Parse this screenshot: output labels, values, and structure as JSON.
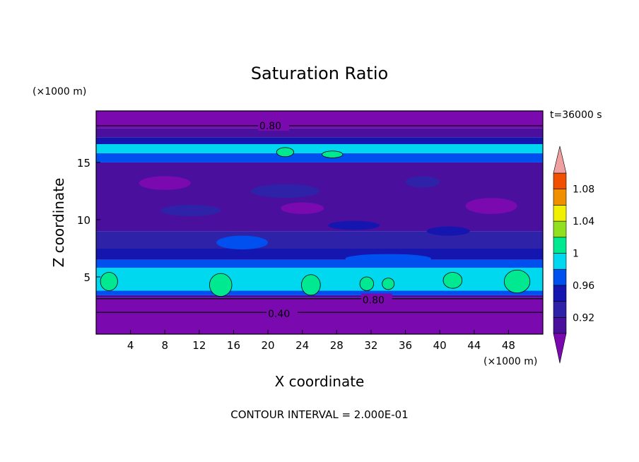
{
  "chart_data": {
    "type": "heatmap",
    "title": "Saturation Ratio",
    "xlabel": "X coordinate",
    "ylabel": "Z coordinate",
    "x_unit": "(×1000 m)",
    "y_unit": "(×1000 m)",
    "time_label": "t=36000 s",
    "footer": "CONTOUR INTERVAL = 2.000E-01",
    "xlim": [
      0,
      52
    ],
    "ylim": [
      0,
      19.5
    ],
    "x_ticks": [
      4,
      8,
      12,
      16,
      20,
      24,
      28,
      32,
      36,
      40,
      44,
      48
    ],
    "y_ticks": [
      5,
      10,
      15
    ],
    "colorbar": {
      "labels": [
        "0.92",
        "0.96",
        "1",
        "1.04",
        "1.08"
      ],
      "levels": [
        0.9,
        0.92,
        0.94,
        0.96,
        0.98,
        1.0,
        1.02,
        1.04,
        1.06,
        1.08,
        1.1
      ],
      "colors": [
        "#4b0f9e",
        "#2d22a8",
        "#1515b0",
        "#0050f0",
        "#00d8f0",
        "#00e890",
        "#90e020",
        "#f0f000",
        "#f09000",
        "#f05000",
        "#f01010",
        "#f0a0a0"
      ],
      "under_color": "#7a0ab0",
      "over_color": "#f0a0a0"
    },
    "contour_labels": [
      {
        "text": "0.80",
        "x": 19,
        "z": 18.2
      },
      {
        "text": "0.80",
        "x": 31,
        "z": 3.0
      },
      {
        "text": "0.40",
        "x": 20,
        "z": 1.8
      }
    ],
    "bands": [
      {
        "z0": 0.0,
        "z1": 3.2,
        "value": 0.5
      },
      {
        "z0": 3.2,
        "z1": 3.4,
        "value": 0.91
      },
      {
        "z0": 3.4,
        "z1": 3.8,
        "value": 0.97
      },
      {
        "z0": 3.8,
        "z1": 5.8,
        "value": 0.99
      },
      {
        "z0": 5.8,
        "z1": 6.5,
        "value": 0.97
      },
      {
        "z0": 6.5,
        "z1": 7.5,
        "value": 0.95
      },
      {
        "z0": 7.5,
        "z1": 9.0,
        "value": 0.93
      },
      {
        "z0": 9.0,
        "z1": 15.0,
        "value": 0.9
      },
      {
        "z0": 15.0,
        "z1": 15.8,
        "value": 0.97
      },
      {
        "z0": 15.8,
        "z1": 16.6,
        "value": 0.99
      },
      {
        "z0": 16.6,
        "z1": 17.2,
        "value": 0.95
      },
      {
        "z0": 17.2,
        "z1": 18.0,
        "value": 0.91
      },
      {
        "z0": 18.0,
        "z1": 19.5,
        "value": 0.8
      }
    ],
    "patches": [
      {
        "x": 1.5,
        "z": 4.6,
        "w": 2.0,
        "h": 1.6,
        "value": 1.01
      },
      {
        "x": 14.5,
        "z": 4.3,
        "w": 2.6,
        "h": 2.0,
        "value": 1.01
      },
      {
        "x": 25.0,
        "z": 4.3,
        "w": 2.2,
        "h": 1.8,
        "value": 1.01
      },
      {
        "x": 31.5,
        "z": 4.4,
        "w": 1.6,
        "h": 1.2,
        "value": 1.01
      },
      {
        "x": 34.0,
        "z": 4.4,
        "w": 1.4,
        "h": 1.0,
        "value": 1.01
      },
      {
        "x": 41.5,
        "z": 4.7,
        "w": 2.2,
        "h": 1.4,
        "value": 1.01
      },
      {
        "x": 49.0,
        "z": 4.6,
        "w": 3.0,
        "h": 2.0,
        "value": 1.01
      },
      {
        "x": 22.0,
        "z": 15.9,
        "w": 2.0,
        "h": 0.8,
        "value": 1.01
      },
      {
        "x": 27.5,
        "z": 15.7,
        "w": 2.4,
        "h": 0.6,
        "value": 1.01
      },
      {
        "x": 11.0,
        "z": 10.8,
        "w": 7.0,
        "h": 1.0,
        "value": 0.93
      },
      {
        "x": 22.0,
        "z": 12.5,
        "w": 8.0,
        "h": 1.2,
        "value": 0.93
      },
      {
        "x": 30.0,
        "z": 9.5,
        "w": 6.0,
        "h": 0.8,
        "value": 0.95
      },
      {
        "x": 41.0,
        "z": 9.0,
        "w": 5.0,
        "h": 0.8,
        "value": 0.95
      },
      {
        "x": 17.0,
        "z": 8.0,
        "w": 6.0,
        "h": 1.2,
        "value": 0.97
      },
      {
        "x": 34.0,
        "z": 6.6,
        "w": 10.0,
        "h": 0.8,
        "value": 0.97
      },
      {
        "x": 8.0,
        "z": 13.2,
        "w": 6.0,
        "h": 1.2,
        "value": 0.88
      },
      {
        "x": 46.0,
        "z": 11.2,
        "w": 6.0,
        "h": 1.4,
        "value": 0.88
      },
      {
        "x": 24.0,
        "z": 11.0,
        "w": 5.0,
        "h": 1.0,
        "value": 0.88
      },
      {
        "x": 38.0,
        "z": 13.3,
        "w": 4.0,
        "h": 1.0,
        "value": 0.93
      }
    ]
  }
}
